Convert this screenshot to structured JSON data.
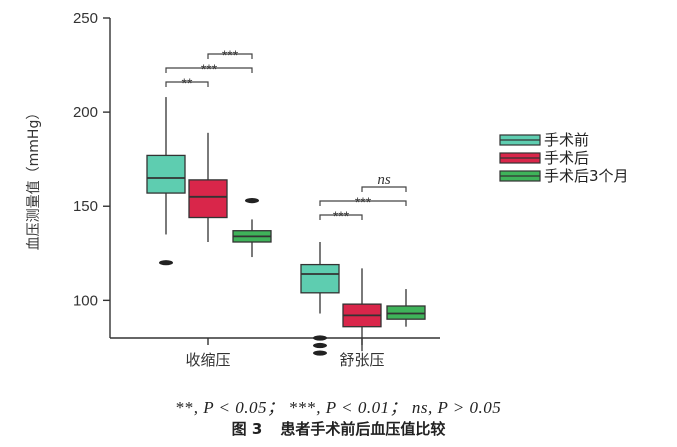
{
  "chart_data": {
    "type": "box",
    "ylabel": "血压测量值（mmHg）",
    "ylim": [
      80,
      250
    ],
    "yticks": [
      100,
      150,
      200,
      250
    ],
    "categories": [
      "收缩压",
      "舒张压"
    ],
    "series": [
      {
        "name": "手术前",
        "color": "#5ecdb0",
        "boxes": [
          {
            "whisker_low": 135,
            "q1": 157,
            "median": 165,
            "q3": 177,
            "whisker_high": 208,
            "outliers": [
              120
            ]
          },
          {
            "whisker_low": 93,
            "q1": 104,
            "median": 114,
            "q3": 119,
            "whisker_high": 131,
            "outliers": [
              72,
              76,
              80
            ]
          }
        ]
      },
      {
        "name": "手术后",
        "color": "#d9264a",
        "boxes": [
          {
            "whisker_low": 131,
            "q1": 144,
            "median": 155,
            "q3": 164,
            "whisker_high": 189,
            "outliers": []
          },
          {
            "whisker_low": 73,
            "q1": 86,
            "median": 92,
            "q3": 98,
            "whisker_high": 117,
            "outliers": []
          }
        ]
      },
      {
        "name": "手术后3个月",
        "color": "#3fb35a",
        "boxes": [
          {
            "whisker_low": 123,
            "q1": 131,
            "median": 134,
            "q3": 137,
            "whisker_high": 143,
            "outliers": [
              153
            ]
          },
          {
            "whisker_low": 86,
            "q1": 90,
            "median": 93,
            "q3": 97,
            "whisker_high": 106,
            "outliers": []
          }
        ]
      }
    ],
    "significance": [
      {
        "category": 0,
        "from": 0,
        "to": 1,
        "level": 1,
        "label": "**"
      },
      {
        "category": 0,
        "from": 0,
        "to": 2,
        "level": 2,
        "label": "***"
      },
      {
        "category": 0,
        "from": 1,
        "to": 2,
        "level": 3,
        "label": "***"
      },
      {
        "category": 1,
        "from": 0,
        "to": 1,
        "level": 1,
        "label": "***"
      },
      {
        "category": 1,
        "from": 0,
        "to": 2,
        "level": 2,
        "label": "***"
      },
      {
        "category": 1,
        "from": 1,
        "to": 2,
        "level": 3,
        "label": "ns"
      }
    ],
    "legend_position": "right"
  },
  "footnote": {
    "p1_stars": "**",
    "p1_rest": ", P < 0.05；",
    "p2_stars": "***",
    "p2_rest": ", P < 0.01；",
    "p3_ns": "ns",
    "p3_rest": ", P > 0.05"
  },
  "caption": {
    "number": "图 3",
    "title": "患者手术前后血压值比较"
  }
}
